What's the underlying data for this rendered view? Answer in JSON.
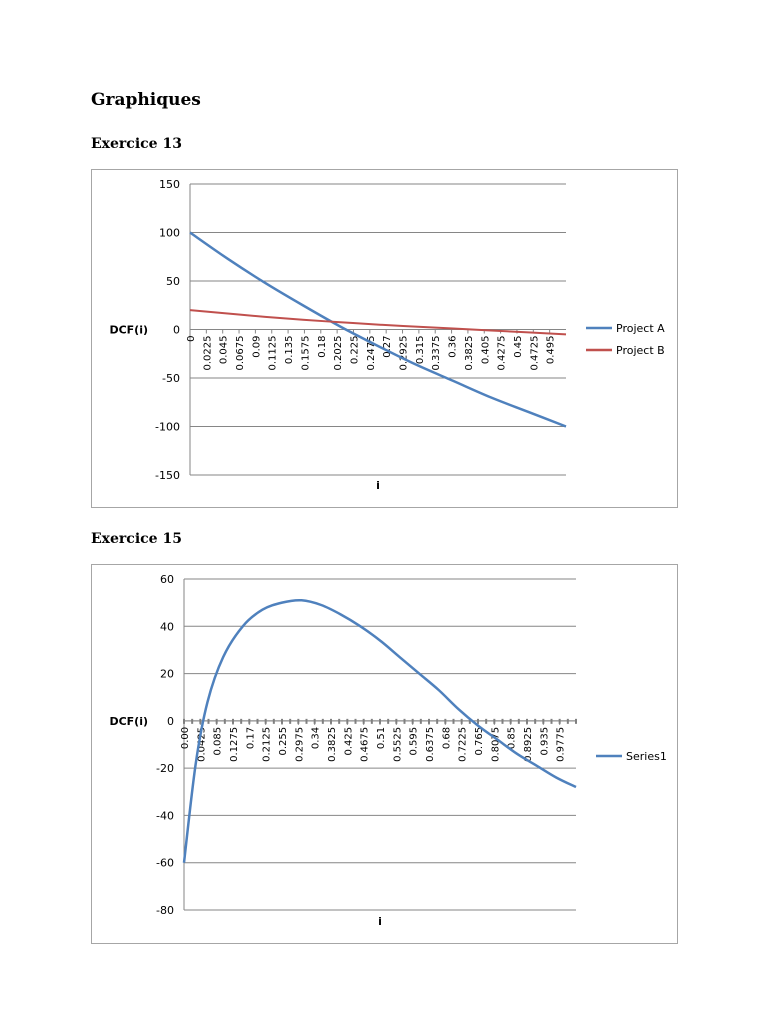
{
  "page": {
    "heading": "Graphiques",
    "sections": [
      {
        "title": "Exercice 13"
      },
      {
        "title": "Exercice 15"
      }
    ]
  },
  "chart_data": [
    {
      "type": "line",
      "title": "",
      "xlabel": "i",
      "ylabel": "DCF(i)",
      "ylim": [
        -150,
        150
      ],
      "yticks": [
        150,
        100,
        50,
        0,
        -50,
        -100,
        -150
      ],
      "xlim": [
        0,
        0.5
      ],
      "xticks": [
        "0",
        "0.0225",
        "0.045",
        "0.0675",
        "0.09",
        "0.1125",
        "0.135",
        "0.1575",
        "0.18",
        "0.2025",
        "0.225",
        "0.2475",
        "0.27",
        "0.2925",
        "0.315",
        "0.3375",
        "0.36",
        "0.3825",
        "0.405",
        "0.4275",
        "0.45",
        "0.4725",
        "0.495"
      ],
      "grid": true,
      "legend_position": "right",
      "series": [
        {
          "name": "Project A",
          "color": "#4f81bd",
          "x": [
            0,
            0.05,
            0.1,
            0.15,
            0.2,
            0.25,
            0.3,
            0.35,
            0.4,
            0.45,
            0.5
          ],
          "y": [
            100,
            73,
            48,
            25,
            3,
            -17,
            -36,
            -53,
            -70,
            -85,
            -100
          ]
        },
        {
          "name": "Project B",
          "color": "#c0504d",
          "x": [
            0,
            0.05,
            0.1,
            0.15,
            0.2,
            0.25,
            0.3,
            0.35,
            0.4,
            0.45,
            0.5
          ],
          "y": [
            20,
            16.5,
            13,
            10,
            7.5,
            5,
            3,
            1,
            -1,
            -3,
            -5
          ]
        }
      ]
    },
    {
      "type": "line",
      "title": "",
      "xlabel": "i",
      "ylabel": "DCF(i)",
      "ylim": [
        -80,
        60
      ],
      "yticks": [
        60,
        40,
        20,
        0,
        -20,
        -40,
        -60,
        -80
      ],
      "xlim": [
        0,
        1
      ],
      "xticks": [
        "0.00",
        "0.0425",
        "0.085",
        "0.1275",
        "0.17",
        "0.2125",
        "0.255",
        "0.2975",
        "0.34",
        "0.3825",
        "0.425",
        "0.4675",
        "0.51",
        "0.5525",
        "0.595",
        "0.6375",
        "0.68",
        "0.7225",
        "0.765",
        "0.8075",
        "0.85",
        "0.8925",
        "0.935",
        "0.9775"
      ],
      "grid": true,
      "legend_position": "right",
      "series": [
        {
          "name": "Series1",
          "color": "#4f81bd",
          "x": [
            0,
            0.03,
            0.06,
            0.1,
            0.15,
            0.2,
            0.25,
            0.3,
            0.35,
            0.4,
            0.45,
            0.5,
            0.55,
            0.6,
            0.65,
            0.7,
            0.75,
            0.8,
            0.85,
            0.9,
            0.95,
            1.0
          ],
          "y": [
            -60,
            -18,
            8,
            27,
            40,
            47,
            50,
            51,
            49,
            45,
            40,
            34,
            27,
            20,
            13,
            5,
            -2,
            -8,
            -14,
            -19,
            -24,
            -28
          ]
        }
      ]
    }
  ]
}
